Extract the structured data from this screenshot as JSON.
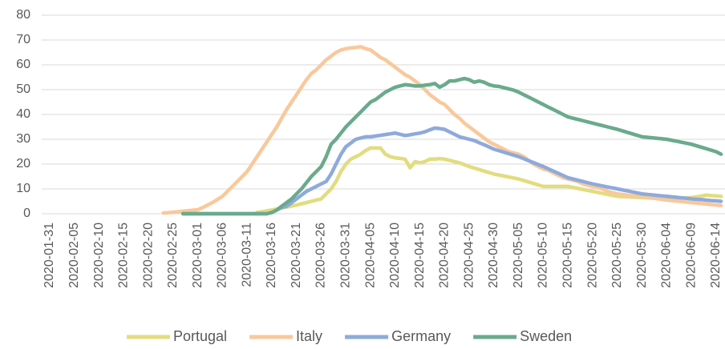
{
  "chart_data": {
    "type": "line",
    "categories": [
      "2020-01-31",
      null,
      null,
      null,
      null,
      "2020-02-05",
      null,
      null,
      null,
      null,
      "2020-02-10",
      null,
      null,
      null,
      null,
      "2020-02-15",
      null,
      null,
      null,
      null,
      "2020-02-20",
      null,
      null,
      null,
      null,
      "2020-02-25",
      null,
      null,
      null,
      null,
      "2020-03-01",
      null,
      null,
      null,
      null,
      "2020-03-06",
      null,
      null,
      null,
      null,
      "2020-03-11",
      null,
      null,
      null,
      null,
      "2020-03-16",
      null,
      null,
      null,
      null,
      "2020-03-21",
      null,
      null,
      null,
      null,
      "2020-03-26",
      null,
      null,
      null,
      null,
      "2020-03-31",
      null,
      null,
      null,
      null,
      "2020-04-05",
      null,
      null,
      null,
      null,
      "2020-04-10",
      null,
      null,
      null,
      null,
      "2020-04-15",
      null,
      null,
      null,
      null,
      "2020-04-20",
      null,
      null,
      null,
      null,
      "2020-04-25",
      null,
      null,
      null,
      null,
      "2020-04-30",
      null,
      null,
      null,
      null,
      "2020-05-05",
      null,
      null,
      null,
      null,
      "2020-05-10",
      null,
      null,
      null,
      null,
      "2020-05-15",
      null,
      null,
      null,
      null,
      "2020-05-20",
      null,
      null,
      null,
      null,
      "2020-05-25",
      null,
      null,
      null,
      null,
      "2020-05-30",
      null,
      null,
      null,
      null,
      "2020-06-04",
      null,
      null,
      null,
      null,
      "2020-06-09",
      null,
      null,
      null,
      null,
      "2020-06-14",
      null
    ],
    "series": [
      {
        "name": "Portugal",
        "color": "#e2dc7f",
        "values": [
          null,
          null,
          null,
          null,
          null,
          null,
          null,
          null,
          null,
          null,
          null,
          null,
          null,
          null,
          null,
          null,
          null,
          null,
          null,
          null,
          null,
          null,
          null,
          null,
          null,
          null,
          null,
          null,
          null,
          null,
          null,
          null,
          null,
          null,
          null,
          null,
          null,
          null,
          null,
          null,
          null,
          null,
          0.5,
          0.8,
          1.2,
          1.5,
          1.9,
          2.3,
          2.7,
          3.1,
          3.5,
          4,
          4.5,
          5,
          5.5,
          6,
          8,
          10,
          13,
          17,
          20,
          22,
          23,
          24,
          25.5,
          26.5,
          26.5,
          26.5,
          24,
          23,
          22.5,
          22.3,
          22,
          18.5,
          21,
          20.5,
          21,
          22,
          22,
          22.2,
          22,
          21.5,
          21,
          20.5,
          19.8,
          19,
          18.4,
          17.8,
          17.2,
          16.6,
          16,
          15.6,
          15.2,
          14.8,
          14.4,
          14,
          13.4,
          12.8,
          12.2,
          11.6,
          11,
          11,
          11,
          11,
          11,
          11,
          10.6,
          10.2,
          9.8,
          9.4,
          9,
          8.6,
          8.2,
          7.8,
          7.4,
          7,
          6.9,
          6.8,
          6.7,
          6.6,
          6.5,
          6.4,
          6.3,
          6.2,
          6.1,
          6,
          6.1,
          6.2,
          6.3,
          6.4,
          6.5,
          6.8,
          7.1,
          7.5,
          7.3,
          7.2,
          7
        ]
      },
      {
        "name": "Italy",
        "color": "#f9c89b",
        "values": [
          null,
          null,
          null,
          null,
          null,
          null,
          null,
          null,
          null,
          null,
          null,
          null,
          null,
          null,
          null,
          null,
          null,
          null,
          null,
          null,
          null,
          null,
          null,
          0.3,
          0.4,
          0.6,
          0.8,
          1.0,
          1.2,
          1.4,
          1.6,
          2.5,
          3.5,
          4.5,
          5.8,
          7,
          9,
          11,
          13,
          15,
          17,
          20,
          23,
          26,
          29,
          32,
          35,
          38.5,
          42,
          45,
          48,
          51,
          54,
          56.5,
          58,
          60,
          62,
          63.5,
          65,
          66,
          66.5,
          66.8,
          67,
          67.3,
          66.5,
          66,
          64.5,
          63,
          62,
          60.5,
          59,
          57.5,
          56,
          55,
          53.5,
          52,
          50,
          48,
          46.5,
          45,
          44,
          42,
          40,
          38.5,
          36.5,
          35,
          33.5,
          32,
          30.5,
          29,
          28,
          27,
          26,
          25,
          24.5,
          24,
          23,
          21.5,
          20,
          19,
          18,
          17.5,
          16.5,
          15.5,
          14.5,
          14,
          13.5,
          13,
          12,
          11.5,
          11,
          10.5,
          10,
          9,
          8.5,
          8,
          7.8,
          7.5,
          7.3,
          7.1,
          7,
          6.7,
          6.4,
          6.1,
          5.8,
          5.5,
          5.3,
          5.1,
          4.9,
          4.7,
          4.5,
          4.3,
          4.1,
          3.9,
          3.7,
          3.5,
          3.3
        ]
      },
      {
        "name": "Germany",
        "color": "#8eaadb",
        "values": [
          null,
          null,
          null,
          null,
          null,
          null,
          null,
          null,
          null,
          null,
          null,
          null,
          null,
          null,
          null,
          null,
          null,
          null,
          null,
          null,
          null,
          null,
          null,
          null,
          null,
          null,
          null,
          0,
          0,
          0,
          0,
          0,
          0,
          0,
          0,
          0,
          0,
          0,
          0,
          0,
          0,
          0,
          0,
          0,
          0,
          0.5,
          1.5,
          2.5,
          3,
          4.5,
          6,
          7.5,
          9,
          10,
          11,
          12,
          13,
          16,
          20,
          24,
          27,
          28.5,
          30,
          30.5,
          31,
          31,
          31.3,
          31.6,
          31.9,
          32.2,
          32.5,
          32,
          31.5,
          31.8,
          32.2,
          32.5,
          33,
          33.8,
          34.5,
          34.3,
          34,
          33,
          32,
          31,
          30.5,
          30,
          29.5,
          28.6,
          27.8,
          26.9,
          26,
          25.4,
          24.8,
          24.2,
          23.6,
          23,
          22.2,
          21.4,
          20.6,
          19.8,
          19,
          18.1,
          17.2,
          16.3,
          15.4,
          14.5,
          14,
          13.5,
          13,
          12.5,
          12,
          11.6,
          11.2,
          10.8,
          10.4,
          10,
          9.6,
          9.2,
          8.8,
          8.4,
          8,
          7.8,
          7.6,
          7.4,
          7.2,
          7,
          6.8,
          6.6,
          6.4,
          6.2,
          6,
          5.8,
          5.7,
          5.5,
          5.3,
          5.2,
          5
        ]
      },
      {
        "name": "Sweden",
        "color": "#6aaa8d",
        "values": [
          null,
          null,
          null,
          null,
          null,
          null,
          null,
          null,
          null,
          null,
          null,
          null,
          null,
          null,
          null,
          null,
          null,
          null,
          null,
          null,
          null,
          null,
          null,
          null,
          null,
          null,
          null,
          0,
          0,
          0,
          0,
          0,
          0,
          0,
          0,
          0,
          0,
          0,
          0,
          0,
          0,
          0,
          0,
          0,
          0,
          0.5,
          1.5,
          3,
          4.5,
          6,
          8,
          10,
          12.5,
          15,
          17,
          19,
          23,
          28,
          30,
          32.5,
          35,
          37,
          39,
          41,
          43,
          45,
          46,
          47.5,
          49,
          50,
          51,
          51.5,
          52,
          51.8,
          51.5,
          51.5,
          51.8,
          52,
          52.5,
          51,
          52,
          53.5,
          53.5,
          54,
          54.5,
          54,
          53,
          53.5,
          53,
          52,
          51.5,
          51.3,
          50.8,
          50.3,
          49.8,
          49,
          48,
          47,
          46,
          45,
          44,
          43,
          42,
          41,
          40,
          39,
          38.5,
          38,
          37.5,
          37,
          36.5,
          36,
          35.5,
          35,
          34.5,
          34,
          33.4,
          32.8,
          32.2,
          31.6,
          31,
          30.8,
          30.6,
          30.4,
          30.2,
          30,
          29.6,
          29.2,
          28.8,
          28.4,
          28,
          27.4,
          26.8,
          26.2,
          25.6,
          25,
          24
        ]
      }
    ],
    "ylim": [
      0,
      80
    ],
    "yticks": [
      0,
      10,
      20,
      30,
      40,
      50,
      60,
      70,
      80
    ],
    "grid": true,
    "legend": "bottom"
  }
}
